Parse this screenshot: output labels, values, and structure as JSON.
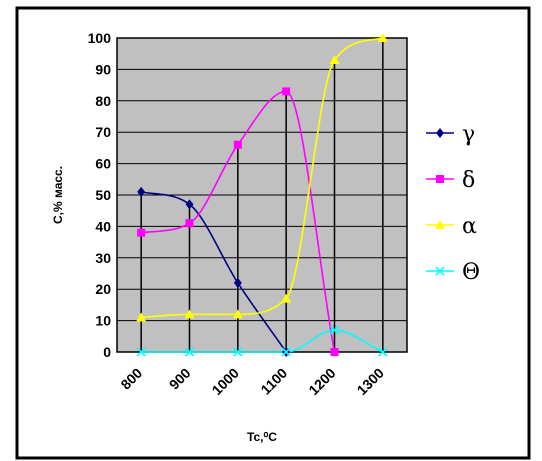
{
  "chart_data": {
    "type": "line",
    "xlabel": "Tc,⁰C",
    "ylabel": "C,% масс.",
    "x_tick_labels": [
      "800",
      "900",
      "1000",
      "1100",
      "1200",
      "1300"
    ],
    "ylim": [
      0,
      100
    ],
    "y_ticks": [
      0,
      10,
      20,
      30,
      40,
      50,
      60,
      70,
      80,
      90,
      100
    ],
    "grid": true,
    "legend_position": "right",
    "series": [
      {
        "name": "γ",
        "color": "#000080",
        "marker": "diamond",
        "values": [
          51,
          47,
          22,
          0,
          null,
          null
        ]
      },
      {
        "name": "δ",
        "color": "#ff00ff",
        "marker": "square",
        "values": [
          38,
          41,
          66,
          83,
          0,
          null
        ]
      },
      {
        "name": "α",
        "color": "#ffff00",
        "marker": "triangle",
        "values": [
          11,
          12,
          12,
          17,
          93,
          100
        ]
      },
      {
        "name": "Θ",
        "color": "#00ffff",
        "marker": "x",
        "values": [
          0,
          0,
          0,
          0,
          7,
          0
        ]
      }
    ],
    "colors": {
      "plot_background": "#c0c0c0",
      "frame": "#000000",
      "drop_lines": "#000000"
    }
  }
}
